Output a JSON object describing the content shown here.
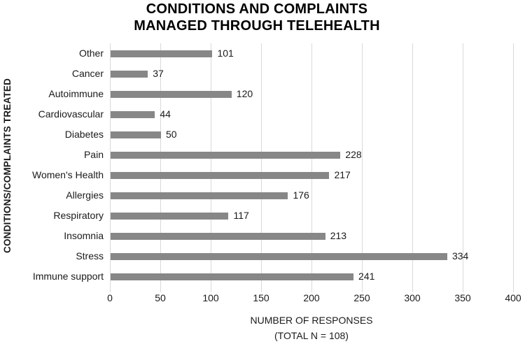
{
  "chart_data": {
    "type": "bar",
    "orientation": "horizontal",
    "title_line1": "CONDITIONS AND COMPLAINTS",
    "title_line2": "MANAGED THROUGH TELEHEALTH",
    "categories": [
      "Other",
      "Cancer",
      "Autoimmune",
      "Cardiovascular",
      "Diabetes",
      "Pain",
      "Women's Health",
      "Allergies",
      "Respiratory",
      "Insomnia",
      "Stress",
      "Immune support"
    ],
    "values": [
      101,
      37,
      120,
      44,
      50,
      228,
      217,
      176,
      117,
      213,
      334,
      241
    ],
    "data_labels": true,
    "xlabel_line1": "NUMBER OF RESPONSES",
    "xlabel_line2": "(TOTAL N = 108)",
    "ylabel": "CONDITIONS/COMPLAINTS TREATED",
    "xlim": [
      0,
      400
    ],
    "xticks": [
      0,
      50,
      100,
      150,
      200,
      250,
      300,
      350,
      400
    ],
    "grid": true,
    "legend": false,
    "bar_color": "#878787",
    "gridline_color": "#d9d9d9",
    "text_color": "#1a1a1a",
    "title_color": "#000000",
    "background_color": "#ffffff"
  }
}
